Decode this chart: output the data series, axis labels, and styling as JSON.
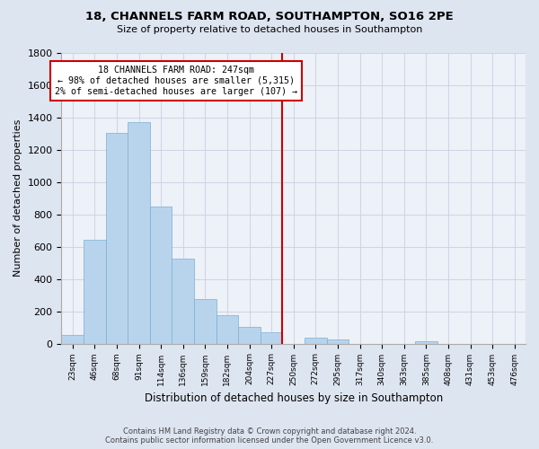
{
  "title": "18, CHANNELS FARM ROAD, SOUTHAMPTON, SO16 2PE",
  "subtitle": "Size of property relative to detached houses in Southampton",
  "xlabel": "Distribution of detached houses by size in Southampton",
  "ylabel": "Number of detached properties",
  "bar_labels": [
    "23sqm",
    "46sqm",
    "68sqm",
    "91sqm",
    "114sqm",
    "136sqm",
    "159sqm",
    "182sqm",
    "204sqm",
    "227sqm",
    "250sqm",
    "272sqm",
    "295sqm",
    "317sqm",
    "340sqm",
    "363sqm",
    "385sqm",
    "408sqm",
    "431sqm",
    "453sqm",
    "476sqm"
  ],
  "bar_values": [
    55,
    645,
    1305,
    1370,
    850,
    525,
    275,
    175,
    105,
    70,
    0,
    35,
    25,
    0,
    0,
    0,
    12,
    0,
    0,
    0,
    0
  ],
  "bar_color": "#b8d4ec",
  "bar_edge_color": "#7aafd4",
  "vline_color": "#cc0000",
  "annotation_title": "18 CHANNELS FARM ROAD: 247sqm",
  "annotation_line1": "← 98% of detached houses are smaller (5,315)",
  "annotation_line2": "2% of semi-detached houses are larger (107) →",
  "annotation_box_color": "#ffffff",
  "annotation_box_edge": "#cc0000",
  "background_color": "#dde5f0",
  "plot_bg_color": "#edf1f8",
  "footer1": "Contains HM Land Registry data © Crown copyright and database right 2024.",
  "footer2": "Contains public sector information licensed under the Open Government Licence v3.0.",
  "ylim": [
    0,
    1800
  ],
  "yticks": [
    0,
    200,
    400,
    600,
    800,
    1000,
    1200,
    1400,
    1600,
    1800
  ]
}
